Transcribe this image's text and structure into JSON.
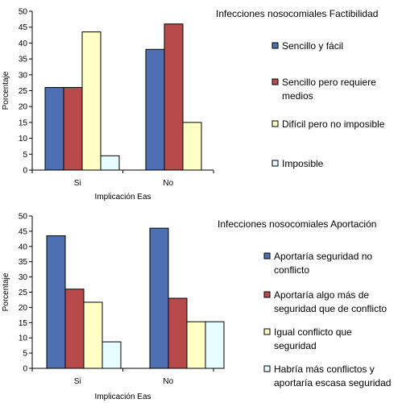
{
  "chart_data": [
    {
      "type": "bar",
      "title": "Infecciones nosocomiales Factibilidad",
      "xlabel": "Implicación Eas",
      "ylabel": "Porcentaje",
      "ylim": [
        0,
        50
      ],
      "yticks": [
        "0",
        "5",
        "10",
        "15",
        "20",
        "25",
        "30",
        "35",
        "40",
        "45",
        "50"
      ],
      "categories": [
        "Si",
        "No"
      ],
      "legend_position": "right",
      "series": [
        {
          "name": "Sencillo y fácil",
          "color": "#4f6fb3",
          "values": [
            26,
            38
          ]
        },
        {
          "name": "Sencillo pero requiere medios",
          "color": "#b94a4c",
          "values": [
            26,
            46
          ]
        },
        {
          "name": "Difícil pero no imposible",
          "color": "#ffffc6",
          "values": [
            43.5,
            15
          ]
        },
        {
          "name": "Imposible",
          "color": "#e6fcff",
          "values": [
            4.5,
            0
          ]
        }
      ]
    },
    {
      "type": "bar",
      "title": "Infecciones nosocomiales Aportación",
      "xlabel": "Implicación Eas",
      "ylabel": "Porcentaje",
      "ylim": [
        0,
        50
      ],
      "yticks": [
        "0",
        "5",
        "10",
        "15",
        "20",
        "25",
        "30",
        "35",
        "40",
        "45",
        "50"
      ],
      "categories": [
        "Si",
        "No"
      ],
      "legend_position": "right",
      "series": [
        {
          "name": "Aportaría seguridad no conflicto",
          "color": "#4f6fb3",
          "values": [
            43.5,
            46
          ]
        },
        {
          "name": "Aportaría algo más de seguridad que de conflicto",
          "color": "#b94a4c",
          "values": [
            26,
            23
          ]
        },
        {
          "name": "Igual conflicto que seguridad",
          "color": "#ffffc6",
          "values": [
            21.7,
            15.3
          ]
        },
        {
          "name": "Habría más conflictos y aportaría escasa seguridad",
          "color": "#e6fcff",
          "values": [
            8.7,
            15.3
          ]
        }
      ]
    }
  ],
  "legend_lines": [
    [
      [
        "Sencillo y fácil"
      ],
      [
        "Sencillo pero requiere",
        "medios"
      ],
      [
        "Difícil pero no imposible"
      ],
      [
        "Imposible"
      ]
    ],
    [
      [
        "Aportaría seguridad no",
        "conflicto"
      ],
      [
        "Aportaría algo más de",
        "seguridad que de conflicto"
      ],
      [
        "Igual conflicto que",
        "seguridad"
      ],
      [
        "Habría más conflictos y",
        "aportaría escasa seguridad"
      ]
    ]
  ]
}
